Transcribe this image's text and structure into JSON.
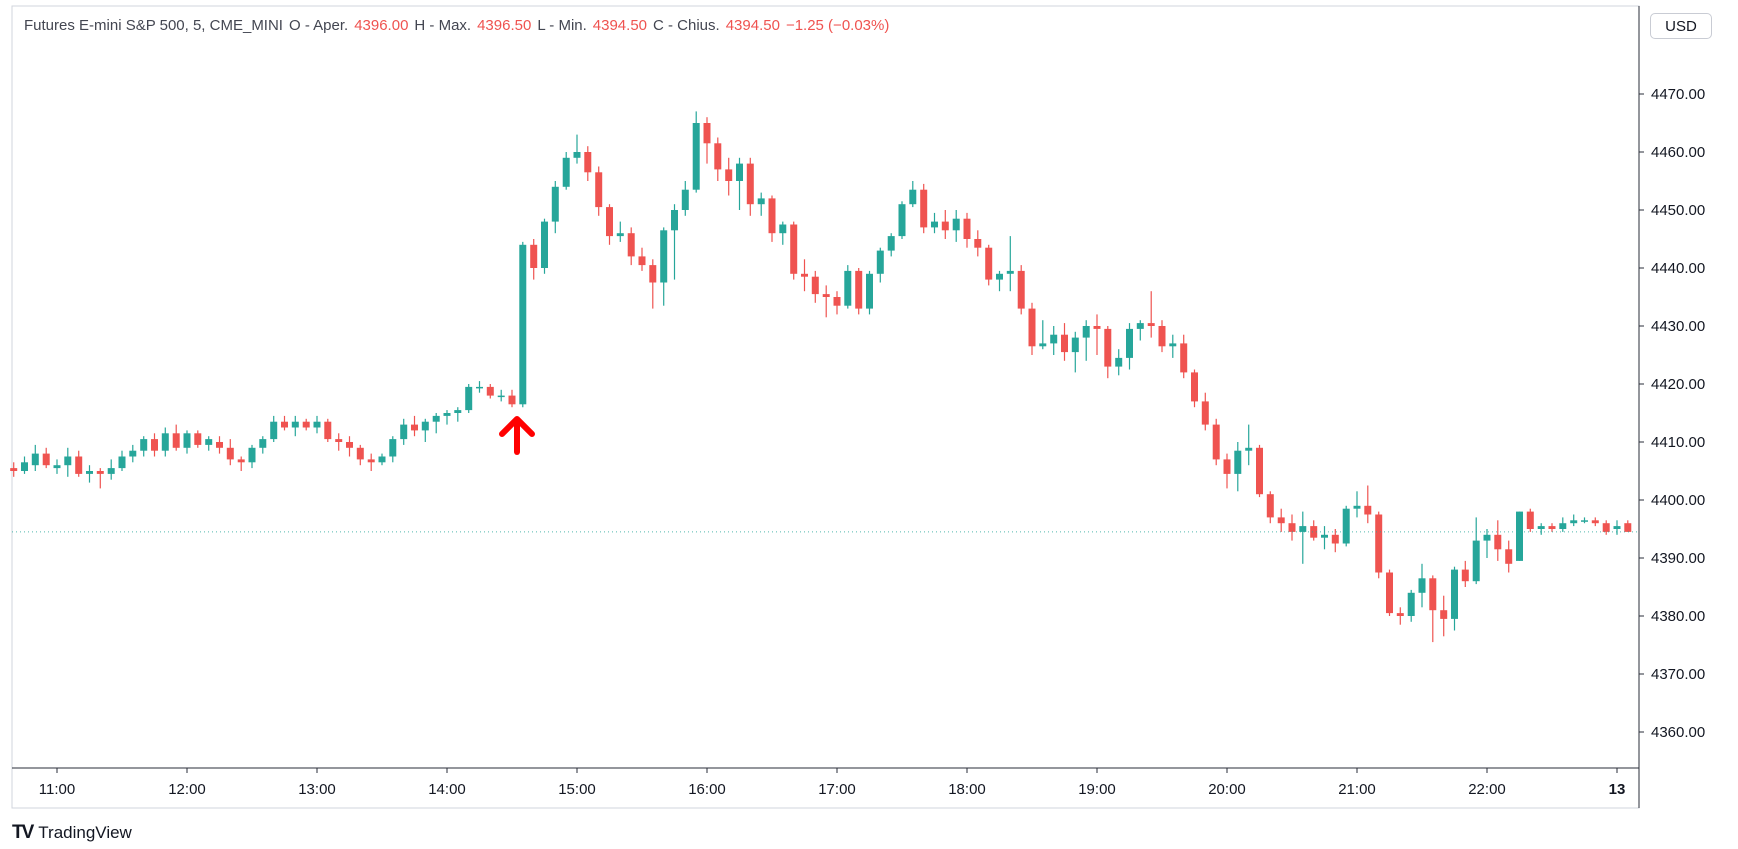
{
  "legend": {
    "symbol": "Futures E-mini S&P 500, 5, CME_MINI",
    "open_label": "O - Aper.",
    "open_value": "4396.00",
    "high_label": "H - Max.",
    "high_value": "4396.50",
    "low_label": "L - Min.",
    "low_value": "4394.50",
    "close_label": "C - Chius.",
    "close_value": "4394.50",
    "change": "−1.25 (−0.03%)"
  },
  "currency": "USD",
  "brand": "TradingView",
  "colors": {
    "up": "#26a69a",
    "down": "#ef5350",
    "arrow": "#ff0000",
    "axis": "#131722",
    "current_price_line": "#26a69a"
  },
  "chart_data": {
    "type": "candlestick",
    "interval": "5m",
    "ylim": [
      4350,
      4480
    ],
    "y_ticks": [
      4360,
      4370,
      4380,
      4390,
      4400,
      4410,
      4420,
      4430,
      4440,
      4450,
      4460,
      4470
    ],
    "x_ticks": [
      {
        "label": "11:00",
        "t": 11.0
      },
      {
        "label": "12:00",
        "t": 12.0
      },
      {
        "label": "13:00",
        "t": 13.0
      },
      {
        "label": "14:00",
        "t": 14.0
      },
      {
        "label": "15:00",
        "t": 15.0
      },
      {
        "label": "16:00",
        "t": 16.0
      },
      {
        "label": "17:00",
        "t": 17.0
      },
      {
        "label": "18:00",
        "t": 18.0
      },
      {
        "label": "19:00",
        "t": 19.0
      },
      {
        "label": "20:00",
        "t": 20.0
      },
      {
        "label": "21:00",
        "t": 21.0
      },
      {
        "label": "22:00",
        "t": 22.0
      },
      {
        "label": "13",
        "t": 23.0,
        "bold": true
      }
    ],
    "current_price": 4394.5,
    "annotation": {
      "type": "up-arrow",
      "t": 14.5,
      "price": 4410
    },
    "candles": [
      [
        10.667,
        4405.5,
        4406.5,
        4404.0,
        4405.0
      ],
      [
        10.75,
        4405.0,
        4407.5,
        4404.5,
        4406.5
      ],
      [
        10.833,
        4406.0,
        4409.5,
        4405.0,
        4408.0
      ],
      [
        10.917,
        4408.0,
        4409.0,
        4405.5,
        4406.0
      ],
      [
        11.0,
        4405.5,
        4407.0,
        4404.5,
        4406.0
      ],
      [
        11.083,
        4406.0,
        4409.0,
        4404.0,
        4407.5
      ],
      [
        11.167,
        4407.5,
        4408.5,
        4404.0,
        4404.5
      ],
      [
        11.25,
        4404.5,
        4406.0,
        4403.0,
        4405.0
      ],
      [
        11.333,
        4405.0,
        4405.5,
        4402.0,
        4404.5
      ],
      [
        11.417,
        4404.5,
        4407.0,
        4403.5,
        4405.5
      ],
      [
        11.5,
        4405.5,
        4408.5,
        4405.0,
        4407.5
      ],
      [
        11.583,
        4407.5,
        4409.5,
        4406.5,
        4408.5
      ],
      [
        11.667,
        4408.5,
        4411.0,
        4407.5,
        4410.5
      ],
      [
        11.75,
        4410.5,
        4411.5,
        4407.5,
        4408.5
      ],
      [
        11.833,
        4408.5,
        4412.5,
        4407.5,
        4411.5
      ],
      [
        11.917,
        4411.5,
        4413.0,
        4408.5,
        4409.0
      ],
      [
        12.0,
        4409.0,
        4412.0,
        4408.0,
        4411.5
      ],
      [
        12.083,
        4411.5,
        4412.0,
        4409.0,
        4409.5
      ],
      [
        12.167,
        4409.5,
        4411.0,
        4408.5,
        4410.5
      ],
      [
        12.25,
        4410.0,
        4411.0,
        4408.0,
        4409.0
      ],
      [
        12.333,
        4409.0,
        4410.5,
        4406.0,
        4407.0
      ],
      [
        12.417,
        4407.0,
        4407.5,
        4405.0,
        4406.5
      ],
      [
        12.5,
        4406.5,
        4409.5,
        4405.5,
        4409.0
      ],
      [
        12.583,
        4409.0,
        4411.0,
        4408.0,
        4410.5
      ],
      [
        12.667,
        4410.5,
        4414.5,
        4410.0,
        4413.5
      ],
      [
        12.75,
        4413.5,
        4414.5,
        4412.0,
        4412.5
      ],
      [
        12.833,
        4412.5,
        4414.5,
        4411.0,
        4413.5
      ],
      [
        12.917,
        4413.5,
        4414.0,
        4412.0,
        4412.5
      ],
      [
        13.0,
        4412.5,
        4414.5,
        4411.5,
        4413.5
      ],
      [
        13.083,
        4413.5,
        4414.0,
        4410.0,
        4410.5
      ],
      [
        13.167,
        4410.5,
        4411.5,
        4408.5,
        4410.0
      ],
      [
        13.25,
        4410.0,
        4411.0,
        4407.5,
        4409.0
      ],
      [
        13.333,
        4409.0,
        4409.5,
        4406.0,
        4407.0
      ],
      [
        13.417,
        4407.0,
        4408.0,
        4405.0,
        4406.5
      ],
      [
        13.5,
        4406.5,
        4408.0,
        4406.0,
        4407.5
      ],
      [
        13.583,
        4407.5,
        4411.0,
        4406.5,
        4410.5
      ],
      [
        13.667,
        4410.5,
        4414.0,
        4409.5,
        4413.0
      ],
      [
        13.75,
        4413.0,
        4414.5,
        4411.0,
        4412.0
      ],
      [
        13.833,
        4412.0,
        4414.0,
        4410.0,
        4413.5
      ],
      [
        13.917,
        4413.5,
        4415.0,
        4411.5,
        4414.5
      ],
      [
        14.0,
        4414.5,
        4415.5,
        4413.0,
        4415.0
      ],
      [
        14.083,
        4415.0,
        4416.0,
        4413.5,
        4415.5
      ],
      [
        14.167,
        4415.5,
        4420.0,
        4415.0,
        4419.5
      ],
      [
        14.25,
        4419.5,
        4420.5,
        4418.5,
        4419.5
      ],
      [
        14.333,
        4419.5,
        4420.0,
        4417.5,
        4418.0
      ],
      [
        14.417,
        4418.0,
        4419.0,
        4417.0,
        4418.0
      ],
      [
        14.5,
        4418.0,
        4419.0,
        4416.0,
        4416.5
      ],
      [
        14.583,
        4416.5,
        4444.5,
        4416.0,
        4444.0
      ],
      [
        14.667,
        4444.0,
        4445.0,
        4438.0,
        4440.0
      ],
      [
        14.75,
        4440.0,
        4448.5,
        4439.0,
        4448.0
      ],
      [
        14.833,
        4448.0,
        4455.0,
        4446.0,
        4454.0
      ],
      [
        14.917,
        4454.0,
        4460.0,
        4453.5,
        4459.0
      ],
      [
        15.0,
        4459.0,
        4463.0,
        4458.0,
        4460.0
      ],
      [
        15.083,
        4460.0,
        4461.0,
        4455.0,
        4456.5
      ],
      [
        15.167,
        4456.5,
        4457.5,
        4449.0,
        4450.5
      ],
      [
        15.25,
        4450.5,
        4451.0,
        4444.0,
        4445.5
      ],
      [
        15.333,
        4445.5,
        4448.0,
        4444.5,
        4446.0
      ],
      [
        15.417,
        4446.0,
        4447.0,
        4440.5,
        4442.0
      ],
      [
        15.5,
        4442.0,
        4443.5,
        4439.5,
        4440.5
      ],
      [
        15.583,
        4440.5,
        4441.5,
        4433.0,
        4437.5
      ],
      [
        15.667,
        4437.5,
        4447.0,
        4433.5,
        4446.5
      ],
      [
        15.75,
        4446.5,
        4451.0,
        4438.0,
        4450.0
      ],
      [
        15.833,
        4450.0,
        4455.0,
        4449.0,
        4453.5
      ],
      [
        15.917,
        4453.5,
        4467.0,
        4453.0,
        4465.0
      ],
      [
        16.0,
        4465.0,
        4466.0,
        4458.0,
        4461.5
      ],
      [
        16.083,
        4461.5,
        4462.5,
        4455.0,
        4457.0
      ],
      [
        16.167,
        4457.0,
        4459.0,
        4452.5,
        4455.0
      ],
      [
        16.25,
        4455.0,
        4459.0,
        4450.0,
        4458.0
      ],
      [
        16.333,
        4458.0,
        4459.0,
        4449.0,
        4451.0
      ],
      [
        16.417,
        4451.0,
        4453.0,
        4449.0,
        4452.0
      ],
      [
        16.5,
        4452.0,
        4452.5,
        4444.5,
        4446.0
      ],
      [
        16.583,
        4446.0,
        4448.0,
        4444.0,
        4447.5
      ],
      [
        16.667,
        4447.5,
        4448.0,
        4438.0,
        4439.0
      ],
      [
        16.75,
        4439.0,
        4441.5,
        4436.0,
        4438.5
      ],
      [
        16.833,
        4438.5,
        4439.5,
        4434.0,
        4435.5
      ],
      [
        16.917,
        4435.5,
        4437.0,
        4431.5,
        4435.0
      ],
      [
        17.0,
        4435.0,
        4436.0,
        4432.0,
        4433.5
      ],
      [
        17.083,
        4433.5,
        4440.5,
        4433.0,
        4439.5
      ],
      [
        17.167,
        4439.5,
        4440.0,
        4432.0,
        4433.0
      ],
      [
        17.25,
        4433.0,
        4439.5,
        4432.0,
        4439.0
      ],
      [
        17.333,
        4439.0,
        4443.5,
        4437.5,
        4443.0
      ],
      [
        17.417,
        4443.0,
        4446.0,
        4442.0,
        4445.5
      ],
      [
        17.5,
        4445.5,
        4451.5,
        4445.0,
        4451.0
      ],
      [
        17.583,
        4451.0,
        4455.0,
        4450.5,
        4453.5
      ],
      [
        17.667,
        4453.5,
        4454.5,
        4446.0,
        4447.0
      ],
      [
        17.75,
        4447.0,
        4449.5,
        4446.0,
        4448.0
      ],
      [
        17.833,
        4448.0,
        4450.0,
        4445.0,
        4446.5
      ],
      [
        17.917,
        4446.5,
        4450.0,
        4444.5,
        4448.5
      ],
      [
        18.0,
        4448.5,
        4449.5,
        4443.5,
        4445.0
      ],
      [
        18.083,
        4445.0,
        4446.5,
        4442.0,
        4443.5
      ],
      [
        18.167,
        4443.5,
        4444.0,
        4437.0,
        4438.0
      ],
      [
        18.25,
        4438.0,
        4439.5,
        4436.0,
        4439.0
      ],
      [
        18.333,
        4439.0,
        4445.5,
        4436.0,
        4439.5
      ],
      [
        18.417,
        4439.5,
        4440.5,
        4432.0,
        4433.0
      ],
      [
        18.5,
        4433.0,
        4434.0,
        4425.0,
        4426.5
      ],
      [
        18.583,
        4426.5,
        4431.0,
        4426.0,
        4427.0
      ],
      [
        18.667,
        4427.0,
        4430.0,
        4425.0,
        4428.5
      ],
      [
        18.75,
        4428.5,
        4430.5,
        4424.0,
        4425.5
      ],
      [
        18.833,
        4425.5,
        4429.0,
        4422.0,
        4428.0
      ],
      [
        18.917,
        4428.0,
        4431.0,
        4424.0,
        4430.0
      ],
      [
        19.0,
        4430.0,
        4432.0,
        4425.0,
        4429.5
      ],
      [
        19.083,
        4429.5,
        4430.0,
        4421.0,
        4423.0
      ],
      [
        19.167,
        4423.0,
        4426.0,
        4421.5,
        4424.5
      ],
      [
        19.25,
        4424.5,
        4430.5,
        4422.5,
        4429.5
      ],
      [
        19.333,
        4429.5,
        4431.0,
        4427.5,
        4430.5
      ],
      [
        19.417,
        4430.5,
        4436.0,
        4428.0,
        4430.0
      ],
      [
        19.5,
        4430.0,
        4431.0,
        4425.5,
        4426.5
      ],
      [
        19.583,
        4426.5,
        4428.5,
        4424.5,
        4427.0
      ],
      [
        19.667,
        4427.0,
        4428.5,
        4421.0,
        4422.0
      ],
      [
        19.75,
        4422.0,
        4422.5,
        4416.0,
        4417.0
      ],
      [
        19.833,
        4417.0,
        4418.5,
        4412.0,
        4413.0
      ],
      [
        19.917,
        4413.0,
        4414.0,
        4406.0,
        4407.0
      ],
      [
        20.0,
        4407.0,
        4408.0,
        4402.0,
        4404.5
      ],
      [
        20.083,
        4404.5,
        4410.0,
        4401.5,
        4408.5
      ],
      [
        20.167,
        4408.5,
        4413.0,
        4406.0,
        4409.0
      ],
      [
        20.25,
        4409.0,
        4409.5,
        4400.5,
        4401.0
      ],
      [
        20.333,
        4401.0,
        4401.5,
        4396.0,
        4397.0
      ],
      [
        20.417,
        4397.0,
        4398.5,
        4394.5,
        4396.0
      ],
      [
        20.5,
        4396.0,
        4397.5,
        4393.0,
        4394.5
      ],
      [
        20.583,
        4394.5,
        4398.0,
        4389.0,
        4395.5
      ],
      [
        20.667,
        4395.5,
        4396.5,
        4393.0,
        4393.5
      ],
      [
        20.75,
        4393.5,
        4395.5,
        4391.5,
        4394.0
      ],
      [
        20.833,
        4394.0,
        4395.0,
        4391.0,
        4392.5
      ],
      [
        20.917,
        4392.5,
        4399.0,
        4392.0,
        4398.5
      ],
      [
        21.0,
        4398.5,
        4401.5,
        4397.0,
        4399.0
      ],
      [
        21.083,
        4399.0,
        4402.5,
        4396.0,
        4397.5
      ],
      [
        21.167,
        4397.5,
        4398.0,
        4386.5,
        4387.5
      ],
      [
        21.25,
        4387.5,
        4388.0,
        4380.0,
        4380.5
      ],
      [
        21.333,
        4380.5,
        4381.5,
        4378.5,
        4380.0
      ],
      [
        21.417,
        4380.0,
        4384.5,
        4379.0,
        4384.0
      ],
      [
        21.5,
        4384.0,
        4389.0,
        4381.5,
        4386.5
      ],
      [
        21.583,
        4386.5,
        4387.0,
        4375.5,
        4381.0
      ],
      [
        21.667,
        4381.0,
        4383.5,
        4376.5,
        4379.5
      ],
      [
        21.75,
        4379.5,
        4388.5,
        4377.5,
        4388.0
      ],
      [
        21.833,
        4388.0,
        4389.5,
        4385.0,
        4386.0
      ],
      [
        21.917,
        4386.0,
        4397.0,
        4385.5,
        4393.0
      ],
      [
        22.0,
        4393.0,
        4395.0,
        4390.0,
        4394.0
      ],
      [
        22.083,
        4394.0,
        4396.5,
        4389.5,
        4391.5
      ],
      [
        22.167,
        4391.5,
        4393.0,
        4387.5,
        4389.0
      ],
      [
        22.25,
        4389.5,
        4398.0,
        4389.5,
        4398.0
      ],
      [
        22.333,
        4398.0,
        4398.5,
        4394.5,
        4395.0
      ],
      [
        22.417,
        4395.0,
        4396.0,
        4394.0,
        4395.5
      ],
      [
        22.5,
        4395.5,
        4396.0,
        4394.5,
        4395.0
      ],
      [
        22.583,
        4395.0,
        4397.0,
        4394.5,
        4396.0
      ],
      [
        22.667,
        4396.0,
        4397.5,
        4395.5,
        4396.5
      ],
      [
        22.75,
        4396.5,
        4397.0,
        4396.0,
        4396.5
      ],
      [
        22.833,
        4396.5,
        4397.0,
        4395.5,
        4396.0
      ],
      [
        22.917,
        4396.0,
        4396.5,
        4394.0,
        4394.5
      ],
      [
        23.0,
        4395.0,
        4396.5,
        4394.0,
        4395.5
      ],
      [
        23.083,
        4396.0,
        4396.5,
        4394.5,
        4394.5
      ]
    ]
  }
}
